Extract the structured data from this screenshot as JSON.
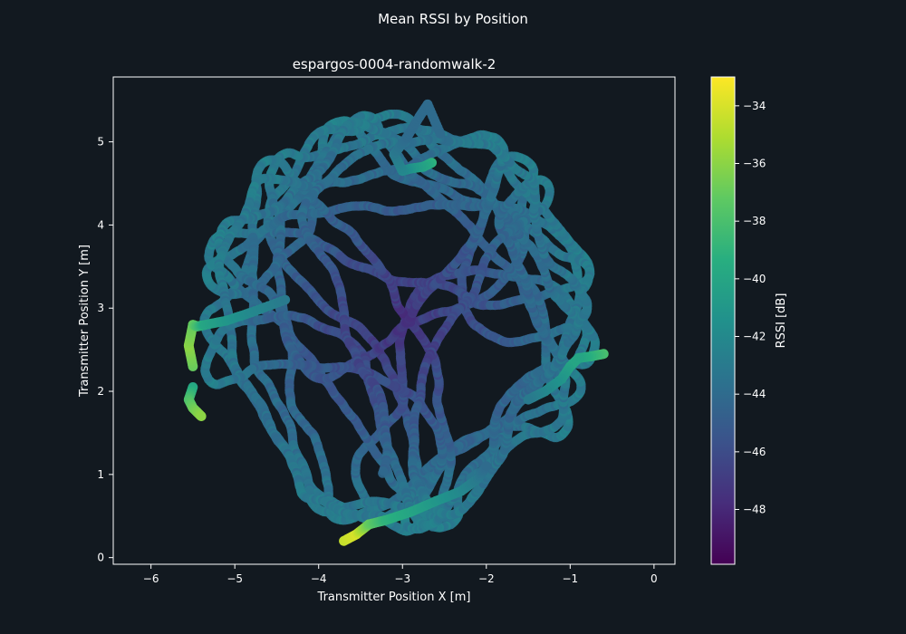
{
  "figure": {
    "suptitle": "Mean RSSI by Position",
    "background": "#121920"
  },
  "chart_data": {
    "type": "scatter",
    "title": "espargos-0004-randomwalk-2",
    "xlabel": "Transmitter Position X [m]",
    "ylabel": "Transmitter Position Y [m]",
    "xlim": [
      -6.45,
      0.25
    ],
    "ylim": [
      -0.08,
      5.78
    ],
    "xticks": [
      -6,
      -5,
      -4,
      -3,
      -2,
      -1,
      0
    ],
    "yticks": [
      0,
      1,
      2,
      3,
      4,
      5
    ],
    "colormap": "viridis",
    "colorbar": {
      "label": "RSSI [dB]",
      "range": [
        -49.9,
        -33.0
      ],
      "ticks": [
        -34,
        -36,
        -38,
        -40,
        -42,
        -44,
        -46,
        -48
      ]
    },
    "colors": {
      "axes_edge": "#ffffff",
      "text": "#ffffff",
      "plot_background": "#121920"
    },
    "series": [
      {
        "description_path_segments": [
          {
            "x": [
              -3.7,
              -3.55,
              -3.4,
              -3.2,
              -2.9,
              -2.6,
              -2.3,
              -2.1,
              -2.0
            ],
            "y": [
              0.2,
              0.28,
              0.4,
              0.45,
              0.55,
              0.68,
              0.8,
              0.95,
              1.1
            ],
            "rssi": [
              -34.5,
              -34,
              -37,
              -39,
              -40,
              -41,
              -42,
              -43,
              -44
            ]
          },
          {
            "x": [
              -5.5,
              -5.55,
              -5.5,
              -5.45,
              -5.35,
              -5.1,
              -4.8,
              -4.4
            ],
            "y": [
              2.3,
              2.55,
              2.8,
              2.78,
              2.8,
              2.85,
              2.95,
              3.1
            ],
            "rssi": [
              -37,
              -36,
              -37,
              -38,
              -40,
              -41,
              -42,
              -43
            ]
          },
          {
            "x": [
              -5.5,
              -5.55,
              -5.5,
              -5.45,
              -5.4
            ],
            "y": [
              2.05,
              1.9,
              1.8,
              1.75,
              1.7
            ],
            "rssi": [
              -40,
              -38,
              -37,
              -36.5,
              -36
            ]
          },
          {
            "x": [
              -0.6,
              -0.75,
              -0.9,
              -1.0,
              -1.1,
              -1.3,
              -1.5
            ],
            "y": [
              2.45,
              2.42,
              2.4,
              2.3,
              2.15,
              2.0,
              1.9
            ],
            "rssi": [
              -38,
              -39,
              -40,
              -40,
              -41,
              -42,
              -43
            ]
          },
          {
            "x": [
              -2.65,
              -2.75,
              -2.9,
              -3.0,
              -3.1,
              -2.95,
              -2.8,
              -2.7,
              -2.55
            ],
            "y": [
              4.75,
              4.7,
              4.68,
              4.65,
              4.85,
              5.05,
              5.3,
              5.45,
              5.1
            ],
            "rssi": [
              -39,
              -40,
              -41,
              -42,
              -43,
              -44,
              -44,
              -44,
              -44
            ]
          }
        ]
      }
    ]
  }
}
